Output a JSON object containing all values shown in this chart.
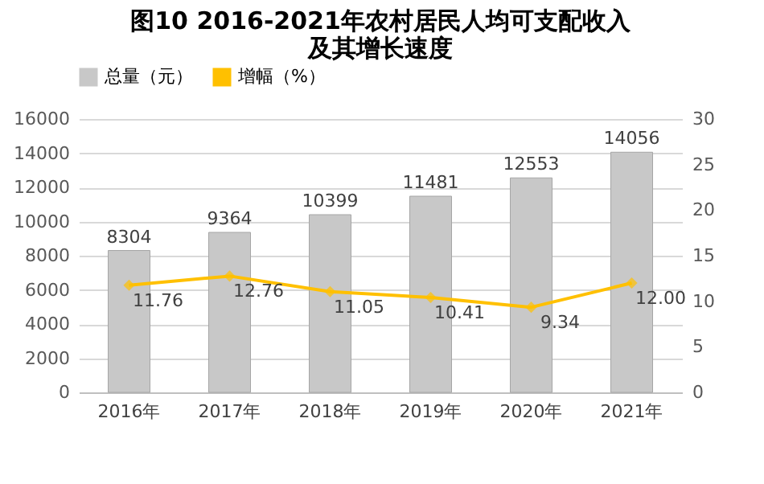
{
  "chart_data": {
    "type": "bar",
    "title": "图10  2016-2021年农村居民人均可支配收入及其增长速度",
    "categories": [
      "2016年",
      "2017年",
      "2018年",
      "2019年",
      "2020年",
      "2021年"
    ],
    "series": [
      {
        "name": "总量（元）",
        "color": "#c8c8c8",
        "values": [
          8304,
          9364,
          10399,
          11481,
          12553,
          14056
        ]
      },
      {
        "name": "增幅（%）",
        "type": "line",
        "axis": "y2",
        "color": "#ffc000",
        "values": [
          11.76,
          12.76,
          11.05,
          10.41,
          9.34,
          12.0
        ]
      }
    ],
    "value_labels": [
      [
        "8304",
        "9364",
        "10399",
        "11481",
        "12553",
        "14056"
      ],
      [
        "11.76",
        "12.76",
        "11.05",
        "10.41",
        "9.34",
        "12.00"
      ]
    ],
    "ylim": [
      0,
      16000
    ],
    "yticks": [
      0,
      2000,
      4000,
      6000,
      8000,
      10000,
      12000,
      14000,
      16000
    ],
    "y2lim": [
      0,
      30
    ],
    "y2ticks": [
      0,
      5,
      10,
      15,
      20,
      25,
      30
    ],
    "grid": "y",
    "legend": "top",
    "marker": "diamond",
    "line_style": "solid"
  }
}
